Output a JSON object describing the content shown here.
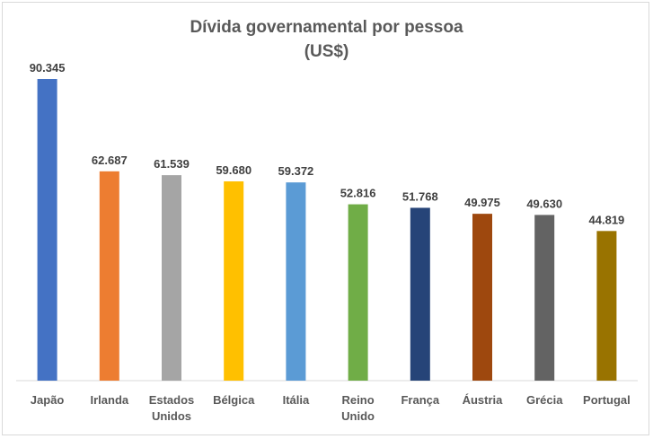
{
  "chart_data": {
    "type": "bar",
    "title_line1": "Dívida governamental por pessoa",
    "title_line2": "(US$)",
    "categories": [
      [
        "Japão"
      ],
      [
        "Irlanda"
      ],
      [
        "Estados",
        "Unidos"
      ],
      [
        "Bélgica"
      ],
      [
        "Itália"
      ],
      [
        "Reino",
        "Unido"
      ],
      [
        "França"
      ],
      [
        "Áustria"
      ],
      [
        "Grécia"
      ],
      [
        "Portugal"
      ]
    ],
    "values": [
      90345,
      62687,
      61539,
      59680,
      59372,
      52816,
      51768,
      49975,
      49630,
      44819
    ],
    "value_labels": [
      "90.345",
      "62.687",
      "61.539",
      "59.680",
      "59.372",
      "52.816",
      "51.768",
      "49.975",
      "49.630",
      "44.819"
    ],
    "colors": [
      "#4472c4",
      "#ed7d31",
      "#a5a5a5",
      "#ffc000",
      "#5b9bd5",
      "#70ad47",
      "#264478",
      "#9e480e",
      "#636363",
      "#997300"
    ],
    "ylim": [
      0,
      100000
    ],
    "grid": false,
    "legend": "none"
  }
}
